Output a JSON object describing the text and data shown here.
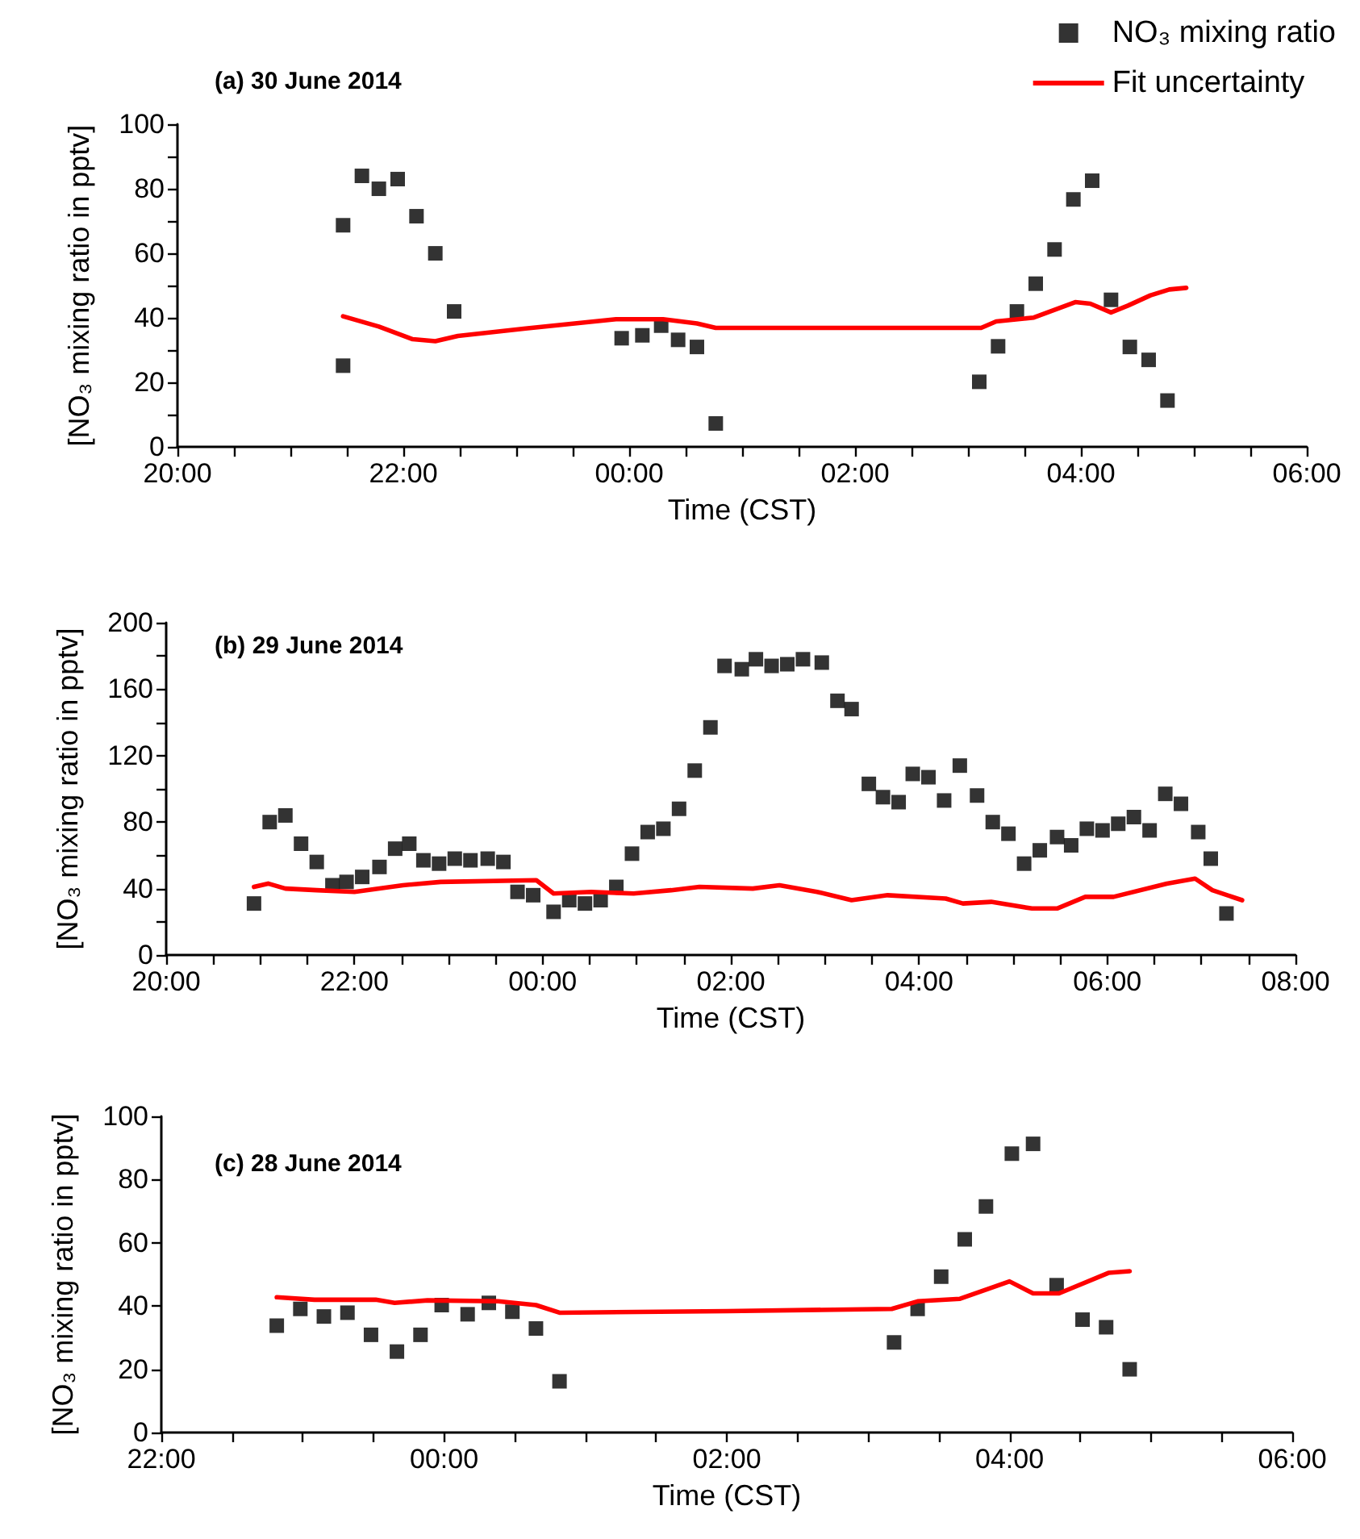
{
  "chart_data": [
    {
      "type": "scatter",
      "title": "(a) 30 June 2014",
      "xlabel": "Time (CST)",
      "ylabel": "[NO₃ mixing ratio in pptv]",
      "legend": "top right",
      "xlim": [
        "2014-06-29T20:00",
        "2014-06-30T06:00"
      ],
      "ylim": [
        0,
        100
      ],
      "xticks": [
        {
          "value": "2014-06-29T20:00",
          "label": "20:00"
        },
        {
          "value": "2014-06-29T20:30",
          "label": null
        },
        {
          "value": "2014-06-29T21:00",
          "label": null
        },
        {
          "value": "2014-06-29T21:30",
          "label": null
        },
        {
          "value": "2014-06-29T22:00",
          "label": "22:00"
        },
        {
          "value": "2014-06-29T22:30",
          "label": null
        },
        {
          "value": "2014-06-29T23:00",
          "label": null
        },
        {
          "value": "2014-06-29T23:30",
          "label": null
        },
        {
          "value": "2014-06-30T00:00",
          "label": "00:00"
        },
        {
          "value": "2014-06-30T00:30",
          "label": null
        },
        {
          "value": "2014-06-30T01:00",
          "label": null
        },
        {
          "value": "2014-06-30T01:30",
          "label": null
        },
        {
          "value": "2014-06-30T02:00",
          "label": "02:00"
        },
        {
          "value": "2014-06-30T02:30",
          "label": null
        },
        {
          "value": "2014-06-30T03:00",
          "label": null
        },
        {
          "value": "2014-06-30T03:30",
          "label": null
        },
        {
          "value": "2014-06-30T04:00",
          "label": "04:00"
        },
        {
          "value": "2014-06-30T04:30",
          "label": null
        },
        {
          "value": "2014-06-30T05:00",
          "label": null
        },
        {
          "value": "2014-06-30T05:30",
          "label": null
        },
        {
          "value": "2014-06-30T06:00",
          "label": "06:00"
        }
      ],
      "yticks": [
        0,
        {
          "value": 10,
          "label": null
        },
        20,
        {
          "value": 30,
          "label": null
        },
        40,
        {
          "value": 50,
          "label": null
        },
        60,
        {
          "value": 70,
          "label": null
        },
        80,
        {
          "value": 90,
          "label": null
        },
        100
      ],
      "series": [
        {
          "type": "scatter",
          "name": "NO₃ mixing ratio",
          "color": "#000000",
          "marker": "square",
          "x": [
            "2014-06-29T21:28",
            "2014-06-29T21:28",
            "2014-06-29T21:38",
            "2014-06-29T21:47",
            "2014-06-29T21:57",
            "2014-06-29T22:07",
            "2014-06-29T22:17",
            "2014-06-29T22:27",
            "2014-06-29T23:56",
            "2014-06-30T00:07",
            "2014-06-30T00:17",
            "2014-06-30T00:26",
            "2014-06-30T00:36",
            "2014-06-30T00:46",
            "2014-06-30T03:06",
            "2014-06-30T03:16",
            "2014-06-30T03:26",
            "2014-06-30T03:36",
            "2014-06-30T03:46",
            "2014-06-30T03:56",
            "2014-06-30T04:06",
            "2014-06-30T04:16",
            "2014-06-30T04:26",
            "2014-06-30T04:36",
            "2014-06-30T04:46"
          ],
          "values": [
            68.7,
            25.2,
            84,
            80,
            83,
            71.5,
            60,
            42,
            33.7,
            34.6,
            37.6,
            33.2,
            31,
            7.3,
            20.2,
            31.2,
            42,
            50.6,
            61.2,
            76.7,
            82.5,
            45.6,
            31,
            27,
            14.4
          ]
        },
        {
          "type": "line",
          "name": "Fit uncertainty",
          "color": "#ff0000",
          "marker": "none",
          "x": [
            "2014-06-29T21:28",
            "2014-06-29T21:47",
            "2014-06-29T22:05",
            "2014-06-29T22:17",
            "2014-06-29T22:29",
            "2014-06-29T23:05",
            "2014-06-29T23:53",
            "2014-06-30T00:18",
            "2014-06-30T00:36",
            "2014-06-30T00:46",
            "2014-06-30T03:07",
            "2014-06-30T03:15",
            "2014-06-30T03:35",
            "2014-06-30T03:57",
            "2014-06-30T04:05",
            "2014-06-30T04:16",
            "2014-06-30T04:25",
            "2014-06-30T04:37",
            "2014-06-30T04:47",
            "2014-06-30T04:56"
          ],
          "values": [
            40.5,
            37.3,
            33.4,
            32.8,
            34.4,
            36.7,
            39.6,
            39.6,
            38.3,
            36.9,
            36.9,
            38.9,
            40.1,
            44.9,
            44.4,
            41.7,
            43.8,
            47,
            48.8,
            49.3
          ]
        }
      ]
    },
    {
      "type": "scatter",
      "title": "(b) 29 June 2014",
      "xlabel": "Time (CST)",
      "ylabel": "[NO₃ mixing ratio in pptv]",
      "xlim": [
        "2014-06-28T20:00",
        "2014-06-29T08:00"
      ],
      "ylim": [
        0,
        200
      ],
      "xticks": [
        {
          "value": "2014-06-28T20:00",
          "label": "20:00"
        },
        {
          "value": "2014-06-28T20:30",
          "label": null
        },
        {
          "value": "2014-06-28T21:00",
          "label": null
        },
        {
          "value": "2014-06-28T21:30",
          "label": null
        },
        {
          "value": "2014-06-28T22:00",
          "label": "22:00"
        },
        {
          "value": "2014-06-28T22:30",
          "label": null
        },
        {
          "value": "2014-06-28T23:00",
          "label": null
        },
        {
          "value": "2014-06-28T23:30",
          "label": null
        },
        {
          "value": "2014-06-29T00:00",
          "label": "00:00"
        },
        {
          "value": "2014-06-29T00:30",
          "label": null
        },
        {
          "value": "2014-06-29T01:00",
          "label": null
        },
        {
          "value": "2014-06-29T01:30",
          "label": null
        },
        {
          "value": "2014-06-29T02:00",
          "label": "02:00"
        },
        {
          "value": "2014-06-29T02:30",
          "label": null
        },
        {
          "value": "2014-06-29T03:00",
          "label": null
        },
        {
          "value": "2014-06-29T03:30",
          "label": null
        },
        {
          "value": "2014-06-29T04:00",
          "label": "04:00"
        },
        {
          "value": "2014-06-29T04:30",
          "label": null
        },
        {
          "value": "2014-06-29T05:00",
          "label": null
        },
        {
          "value": "2014-06-29T05:30",
          "label": null
        },
        {
          "value": "2014-06-29T06:00",
          "label": "06:00"
        },
        {
          "value": "2014-06-29T06:30",
          "label": null
        },
        {
          "value": "2014-06-29T07:00",
          "label": null
        },
        {
          "value": "2014-06-29T07:30",
          "label": null
        },
        {
          "value": "2014-06-29T08:00",
          "label": "08:00"
        }
      ],
      "yticks": [
        0,
        {
          "value": 20,
          "label": null
        },
        40,
        {
          "value": 60,
          "label": null
        },
        80,
        {
          "value": 100,
          "label": null
        },
        120,
        {
          "value": 140,
          "label": null
        },
        160,
        {
          "value": 180,
          "label": null
        },
        200
      ],
      "series": [
        {
          "type": "scatter",
          "color": "#000000",
          "marker": "square",
          "x": [
            "2014-06-28T20:56",
            "2014-06-28T21:06",
            "2014-06-28T21:16",
            "2014-06-28T21:26",
            "2014-06-28T21:36",
            "2014-06-28T21:46",
            "2014-06-28T21:55",
            "2014-06-28T22:05",
            "2014-06-28T22:16",
            "2014-06-28T22:26",
            "2014-06-28T22:35",
            "2014-06-28T22:44",
            "2014-06-28T22:54",
            "2014-06-28T23:04",
            "2014-06-28T23:14",
            "2014-06-28T23:25",
            "2014-06-28T23:35",
            "2014-06-28T23:44",
            "2014-06-28T23:54",
            "2014-06-29T00:07",
            "2014-06-29T00:17",
            "2014-06-29T00:27",
            "2014-06-29T00:37",
            "2014-06-29T00:47",
            "2014-06-29T00:57",
            "2014-06-29T01:07",
            "2014-06-29T01:17",
            "2014-06-29T01:27",
            "2014-06-29T01:37",
            "2014-06-29T01:47",
            "2014-06-29T01:56",
            "2014-06-29T02:07",
            "2014-06-29T02:16",
            "2014-06-29T02:26",
            "2014-06-29T02:36",
            "2014-06-29T02:46",
            "2014-06-29T02:58",
            "2014-06-29T03:08",
            "2014-06-29T03:17",
            "2014-06-29T03:28",
            "2014-06-29T03:37",
            "2014-06-29T03:47",
            "2014-06-29T03:56",
            "2014-06-29T04:06",
            "2014-06-29T04:16",
            "2014-06-29T04:26",
            "2014-06-29T04:37",
            "2014-06-29T04:47",
            "2014-06-29T04:57",
            "2014-06-29T05:07",
            "2014-06-29T05:17",
            "2014-06-29T05:28",
            "2014-06-29T05:37",
            "2014-06-29T05:47",
            "2014-06-29T05:57",
            "2014-06-29T06:07",
            "2014-06-29T06:17",
            "2014-06-29T06:27",
            "2014-06-29T06:37",
            "2014-06-29T06:47",
            "2014-06-29T06:58",
            "2014-06-29T07:06",
            "2014-06-29T07:16"
          ],
          "values": [
            31,
            80,
            84,
            67,
            56,
            42,
            44,
            47,
            53,
            64,
            67,
            57,
            55,
            58,
            57,
            58,
            56,
            38,
            36,
            26,
            33,
            31,
            33,
            41,
            61,
            74,
            76,
            88,
            111,
            137,
            174,
            172,
            178,
            174,
            175,
            178,
            176,
            153,
            148,
            103,
            95,
            92,
            109,
            107,
            93,
            114,
            96,
            80,
            73,
            55,
            63,
            71,
            66,
            76,
            75,
            79,
            83,
            75,
            97,
            91,
            74,
            58,
            25
          ]
        },
        {
          "type": "line",
          "color": "#ff0000",
          "marker": "none",
          "x": [
            "2014-06-28T20:56",
            "2014-06-28T21:05",
            "2014-06-28T21:16",
            "2014-06-28T21:36",
            "2014-06-28T22:00",
            "2014-06-28T22:31",
            "2014-06-28T22:55",
            "2014-06-28T23:56",
            "2014-06-29T00:07",
            "2014-06-29T00:31",
            "2014-06-29T00:58",
            "2014-06-29T01:22",
            "2014-06-29T01:40",
            "2014-06-29T02:14",
            "2014-06-29T02:31",
            "2014-06-29T02:55",
            "2014-06-29T03:17",
            "2014-06-29T03:40",
            "2014-06-29T04:17",
            "2014-06-29T04:28",
            "2014-06-29T04:46",
            "2014-06-29T05:12",
            "2014-06-29T05:28",
            "2014-06-29T05:46",
            "2014-06-29T06:04",
            "2014-06-29T06:38",
            "2014-06-29T06:56",
            "2014-06-29T07:07",
            "2014-06-29T07:26"
          ],
          "values": [
            41,
            43,
            40,
            39,
            38,
            42,
            44,
            45,
            37,
            38,
            37,
            39,
            41,
            40,
            42,
            38,
            33,
            36,
            34,
            31,
            32,
            28,
            28,
            35,
            35,
            43,
            46,
            39,
            33
          ]
        }
      ]
    },
    {
      "type": "scatter",
      "title": "(c) 28 June 2014",
      "xlabel": "Time (CST)",
      "ylabel": "[NO₃ mixing ratio in pptv]",
      "xlim": [
        "2014-06-27T22:00",
        "2014-06-28T06:00"
      ],
      "ylim": [
        0,
        100
      ],
      "xticks": [
        {
          "value": "2014-06-27T22:00",
          "label": "22:00"
        },
        {
          "value": "2014-06-27T22:30",
          "label": null
        },
        {
          "value": "2014-06-27T23:00",
          "label": null
        },
        {
          "value": "2014-06-27T23:30",
          "label": null
        },
        {
          "value": "2014-06-28T00:00",
          "label": "00:00"
        },
        {
          "value": "2014-06-28T00:30",
          "label": null
        },
        {
          "value": "2014-06-28T01:00",
          "label": null
        },
        {
          "value": "2014-06-28T01:30",
          "label": null
        },
        {
          "value": "2014-06-28T02:00",
          "label": "02:00"
        },
        {
          "value": "2014-06-28T02:30",
          "label": null
        },
        {
          "value": "2014-06-28T03:00",
          "label": null
        },
        {
          "value": "2014-06-28T03:30",
          "label": null
        },
        {
          "value": "2014-06-28T04:00",
          "label": "04:00"
        },
        {
          "value": "2014-06-28T04:30",
          "label": null
        },
        {
          "value": "2014-06-28T05:00",
          "label": null
        },
        {
          "value": "2014-06-28T05:30",
          "label": null
        },
        {
          "value": "2014-06-28T06:00",
          "label": "06:00"
        }
      ],
      "yticks": [
        0,
        20,
        40,
        60,
        80,
        100
      ],
      "series": [
        {
          "type": "scatter",
          "color": "#000000",
          "marker": "square",
          "x": [
            "2014-06-27T22:49",
            "2014-06-27T22:59",
            "2014-06-27T23:09",
            "2014-06-27T23:19",
            "2014-06-27T23:29",
            "2014-06-27T23:40",
            "2014-06-27T23:50",
            "2014-06-27T23:59",
            "2014-06-28T00:10",
            "2014-06-28T00:19",
            "2014-06-28T00:29",
            "2014-06-28T00:39",
            "2014-06-28T00:49",
            "2014-06-28T03:11",
            "2014-06-28T03:21",
            "2014-06-28T03:31",
            "2014-06-28T03:41",
            "2014-06-28T03:50",
            "2014-06-28T04:01",
            "2014-06-28T04:10",
            "2014-06-28T04:20",
            "2014-06-28T04:31",
            "2014-06-28T04:41",
            "2014-06-28T04:51"
          ],
          "values": [
            33.8,
            39.1,
            36.7,
            37.9,
            30.9,
            25.6,
            30.9,
            40.3,
            37.4,
            41,
            38.2,
            32.9,
            16.2,
            28.5,
            39.1,
            49.3,
            61.1,
            71.5,
            88.2,
            91.3,
            46.6,
            35.7,
            33.3,
            20
          ]
        },
        {
          "type": "line",
          "color": "#ff0000",
          "marker": "none",
          "x": [
            "2014-06-27T22:49",
            "2014-06-27T23:05",
            "2014-06-27T23:31",
            "2014-06-27T23:39",
            "2014-06-27T23:53",
            "2014-06-28T00:23",
            "2014-06-28T00:39",
            "2014-06-28T00:49",
            "2014-06-28T02:00",
            "2014-06-28T03:10",
            "2014-06-28T03:21",
            "2014-06-28T03:39",
            "2014-06-28T03:50",
            "2014-06-28T04:00",
            "2014-06-28T04:10",
            "2014-06-28T04:21",
            "2014-06-28T04:42",
            "2014-06-28T04:51"
          ],
          "values": [
            42.8,
            42,
            42,
            41,
            41.8,
            41.5,
            40.3,
            37.9,
            38.4,
            39.1,
            41.5,
            42.3,
            45.2,
            47.8,
            44,
            44,
            50.5,
            51
          ]
        }
      ]
    }
  ]
}
